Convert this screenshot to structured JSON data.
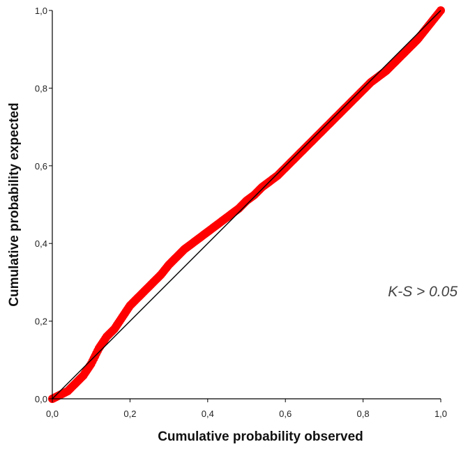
{
  "chart_data": {
    "type": "scatter",
    "xlabel": "Cumulative probability observed",
    "ylabel": "Cumulative probability expected",
    "xlim": [
      0,
      1
    ],
    "ylim": [
      0,
      1
    ],
    "x_ticks": [
      "0,0",
      "0,2",
      "0,4",
      "0,6",
      "0,8",
      "1,0"
    ],
    "y_ticks": [
      "0,0",
      "0,2",
      "0,4",
      "0,6",
      "0,8",
      "1,0"
    ],
    "grid": false,
    "annotation": "K-S > 0.05",
    "series": [
      {
        "color": "#ff0000",
        "points": [
          [
            0.0,
            0.0
          ],
          [
            0.02,
            0.01
          ],
          [
            0.04,
            0.02
          ],
          [
            0.06,
            0.04
          ],
          [
            0.08,
            0.06
          ],
          [
            0.1,
            0.09
          ],
          [
            0.12,
            0.13
          ],
          [
            0.14,
            0.16
          ],
          [
            0.16,
            0.18
          ],
          [
            0.18,
            0.21
          ],
          [
            0.2,
            0.24
          ],
          [
            0.22,
            0.26
          ],
          [
            0.24,
            0.28
          ],
          [
            0.26,
            0.3
          ],
          [
            0.28,
            0.32
          ],
          [
            0.3,
            0.345
          ],
          [
            0.32,
            0.365
          ],
          [
            0.34,
            0.385
          ],
          [
            0.36,
            0.4
          ],
          [
            0.38,
            0.415
          ],
          [
            0.4,
            0.43
          ],
          [
            0.42,
            0.445
          ],
          [
            0.44,
            0.46
          ],
          [
            0.46,
            0.475
          ],
          [
            0.48,
            0.49
          ],
          [
            0.5,
            0.51
          ],
          [
            0.52,
            0.525
          ],
          [
            0.54,
            0.545
          ],
          [
            0.56,
            0.56
          ],
          [
            0.58,
            0.575
          ],
          [
            0.6,
            0.595
          ],
          [
            0.62,
            0.615
          ],
          [
            0.64,
            0.635
          ],
          [
            0.66,
            0.655
          ],
          [
            0.68,
            0.675
          ],
          [
            0.7,
            0.695
          ],
          [
            0.72,
            0.715
          ],
          [
            0.74,
            0.735
          ],
          [
            0.76,
            0.755
          ],
          [
            0.78,
            0.775
          ],
          [
            0.8,
            0.795
          ],
          [
            0.82,
            0.815
          ],
          [
            0.84,
            0.83
          ],
          [
            0.86,
            0.845
          ],
          [
            0.88,
            0.865
          ],
          [
            0.9,
            0.885
          ],
          [
            0.92,
            0.905
          ],
          [
            0.94,
            0.925
          ],
          [
            0.96,
            0.95
          ],
          [
            0.98,
            0.975
          ],
          [
            1.0,
            1.0
          ]
        ]
      }
    ],
    "reference_line": {
      "color": "#000000",
      "from": [
        0,
        0
      ],
      "to": [
        1,
        1
      ]
    }
  }
}
